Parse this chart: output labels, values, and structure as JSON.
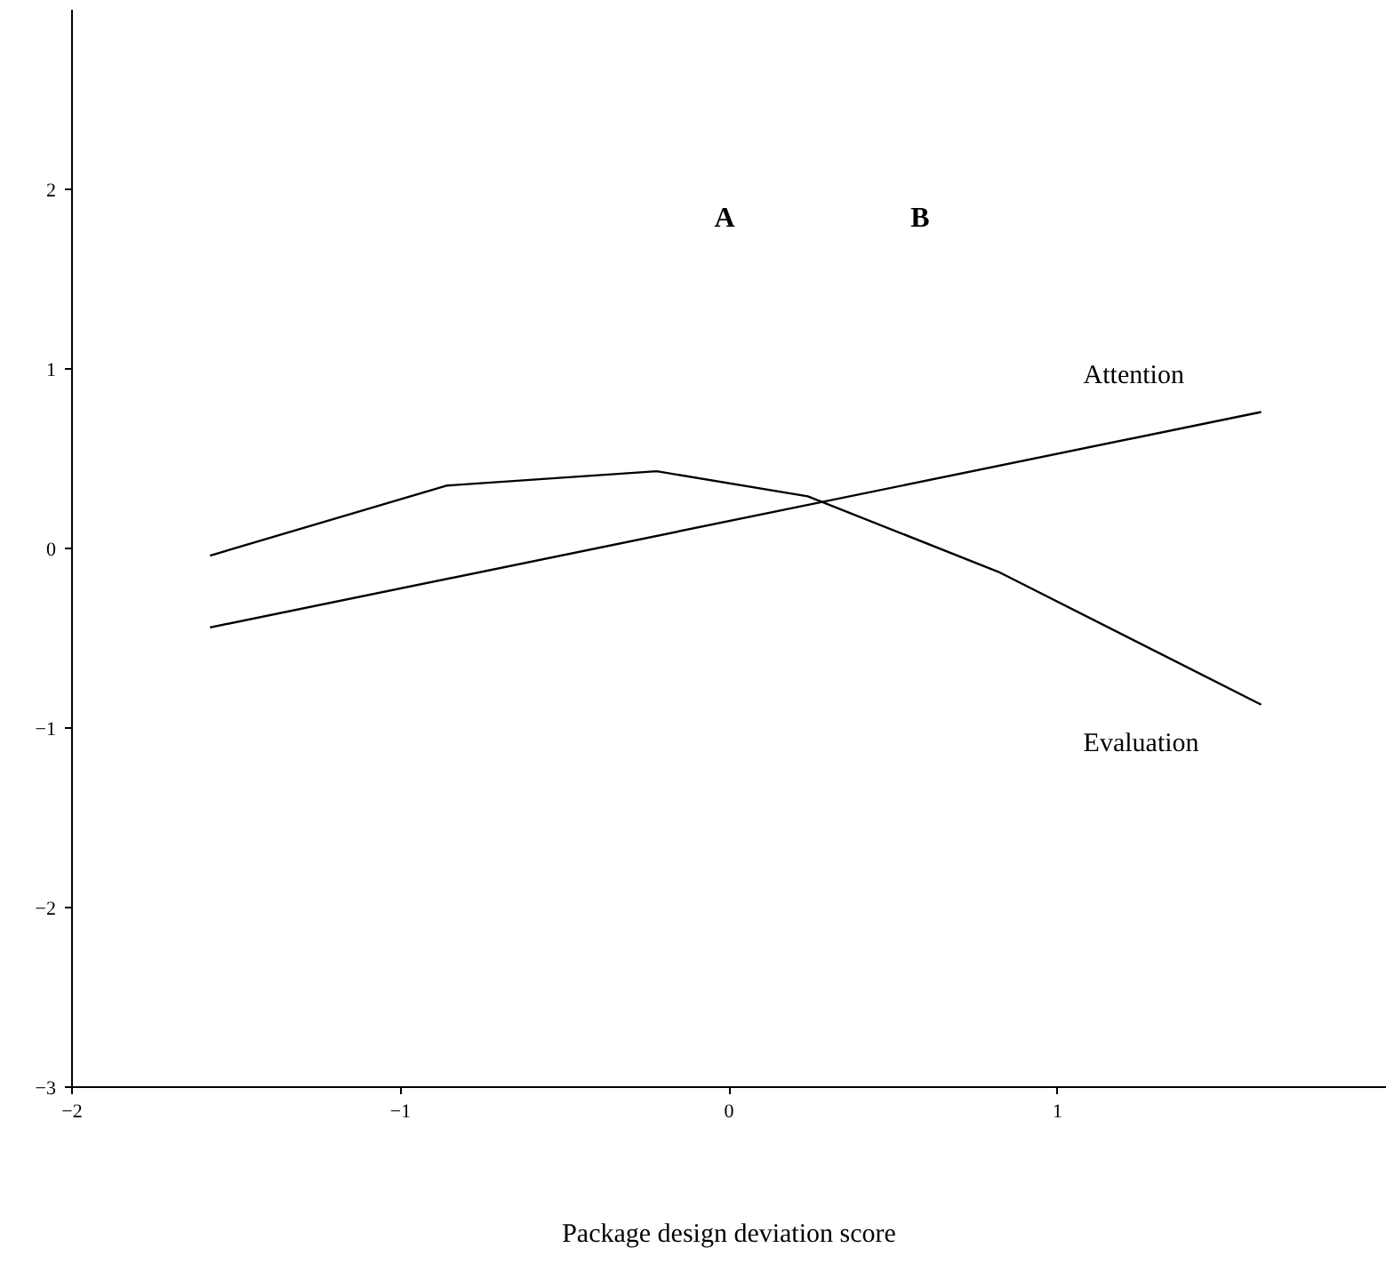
{
  "chart_data": {
    "type": "line",
    "xlabel": "Package design deviation score",
    "xlim": [
      -2,
      2
    ],
    "ylim": [
      -3,
      3
    ],
    "xticks": [
      -2,
      -1,
      0,
      1
    ],
    "yticks": [
      -3,
      -2,
      -1,
      0,
      1,
      2
    ],
    "grid": false,
    "legend": false,
    "marker": "none",
    "line_style": "solid",
    "series": [
      {
        "name": "Attention",
        "color": "#000000",
        "x": [
          -1.58,
          1.62
        ],
        "values": [
          -0.44,
          0.76
        ]
      },
      {
        "name": "Evaluation",
        "color": "#000000",
        "x": [
          -1.58,
          -0.86,
          -0.22,
          0.24,
          0.82,
          1.62
        ],
        "values": [
          -0.04,
          0.35,
          0.43,
          0.29,
          -0.13,
          -0.87
        ]
      }
    ],
    "annotations": [
      "A",
      "B"
    ]
  }
}
